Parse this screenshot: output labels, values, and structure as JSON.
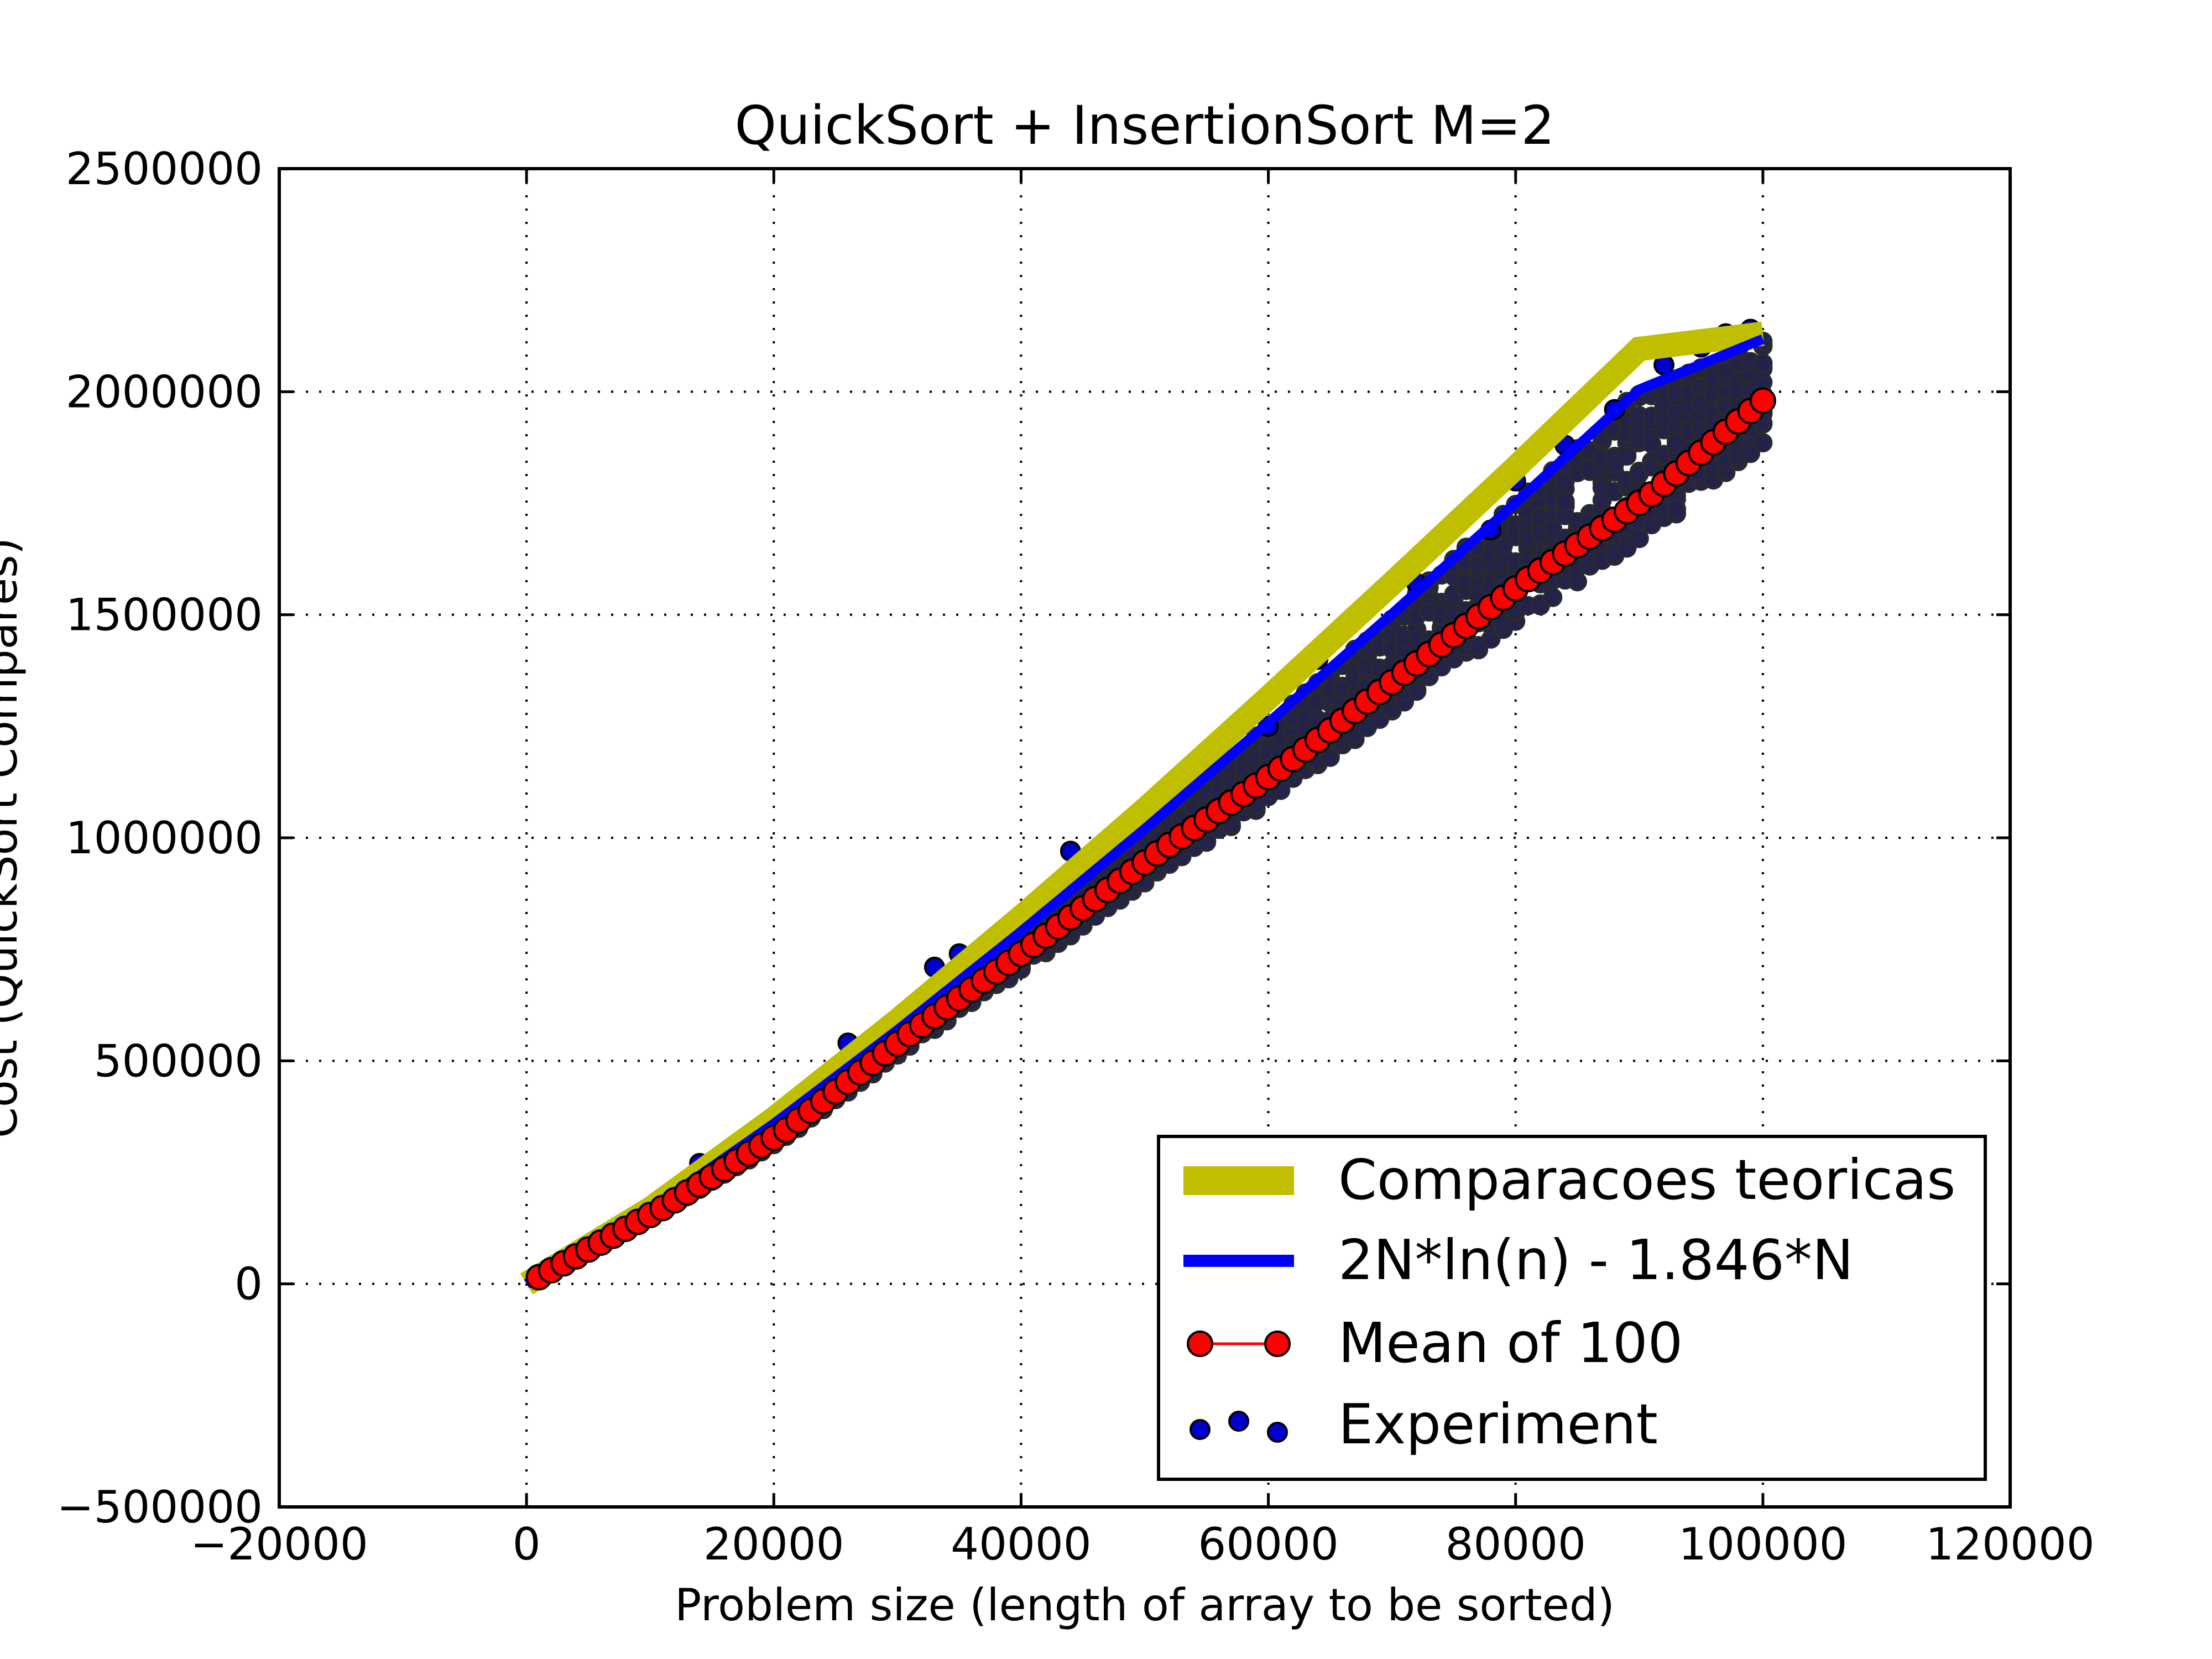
{
  "chart_data": {
    "type": "line",
    "title": "QuickSort + InsertionSort M=2",
    "xlabel": "Problem size (length of array to be sorted)",
    "ylabel": "Cost (QuickSort Compares)",
    "xlim": [
      -20000,
      120000
    ],
    "ylim": [
      -500000,
      2500000
    ],
    "xticks": [
      -20000,
      0,
      20000,
      40000,
      60000,
      80000,
      100000,
      120000
    ],
    "yticks": [
      -500000,
      0,
      500000,
      1000000,
      1500000,
      2000000,
      2500000
    ],
    "xtick_labels": [
      "−20000",
      "0",
      "20000",
      "40000",
      "60000",
      "80000",
      "100000",
      "120000"
    ],
    "ytick_labels": [
      "−500000",
      "0",
      "500000",
      "1000000",
      "1500000",
      "2000000",
      "2500000"
    ],
    "grid": true,
    "legend_position": "lower-right",
    "colors": {
      "theoretical": "#bfbf00",
      "formula": "#0000ff",
      "mean": "#ff0000",
      "experiment": "#0000cc"
    },
    "series": [
      {
        "name": "Comparacoes teoricas",
        "style": "thick-line",
        "x": [
          0,
          10000,
          20000,
          30000,
          40000,
          50000,
          60000,
          70000,
          80000,
          90000,
          100000
        ],
        "y": [
          0,
          168000,
          370000,
          590000,
          822000,
          1063000,
          1314000,
          1570000,
          1830000,
          2096000,
          2130000
        ]
      },
      {
        "name": "2N*ln(n) - 1.846*N",
        "style": "line",
        "x": [
          0,
          10000,
          20000,
          30000,
          40000,
          50000,
          60000,
          70000,
          80000,
          90000,
          100000
        ],
        "y": [
          0,
          166000,
          359000,
          569000,
          790000,
          1020000,
          1258000,
          1502000,
          1751000,
          2005000,
          2118000
        ]
      },
      {
        "name": "Mean of 100",
        "style": "line-marker",
        "x": [
          1000,
          11000,
          21000,
          31000,
          41000,
          51000,
          61000,
          71000,
          81000,
          91000,
          100000
        ],
        "y": [
          15000,
          170000,
          345000,
          560000,
          760000,
          965000,
          1155000,
          1370000,
          1580000,
          1770000,
          1980000
        ]
      },
      {
        "name": "Experiment",
        "style": "scatter",
        "x": [
          1000,
          14000,
          26000,
          33000,
          35000,
          44000,
          55000,
          60000,
          64000,
          72000,
          74000,
          78000,
          80000,
          84000,
          88000,
          92000,
          95000,
          97000,
          99000
        ],
        "y": [
          15000,
          270000,
          540000,
          710000,
          740000,
          970000,
          1180000,
          1250000,
          1400000,
          1570000,
          1670000,
          1690000,
          1800000,
          1880000,
          1960000,
          2060000,
          2100000,
          2130000,
          2140000
        ]
      }
    ]
  }
}
